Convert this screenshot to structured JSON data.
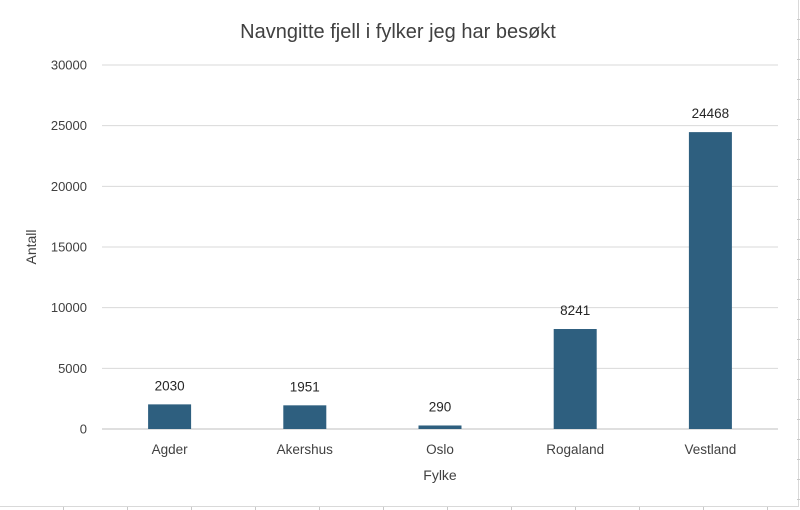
{
  "chart_data": {
    "type": "bar",
    "title": "Navngitte fjell i fylker jeg har besøkt",
    "xlabel": "Fylke",
    "ylabel": "Antall",
    "categories": [
      "Agder",
      "Akershus",
      "Oslo",
      "Rogaland",
      "Vestland"
    ],
    "values": [
      2030,
      1951,
      290,
      8241,
      24468
    ],
    "ylim": [
      0,
      30000
    ],
    "yticks": [
      0,
      5000,
      10000,
      15000,
      20000,
      25000,
      30000
    ],
    "grid": true,
    "legend": "none",
    "bar_color": "#2e5f7f"
  }
}
